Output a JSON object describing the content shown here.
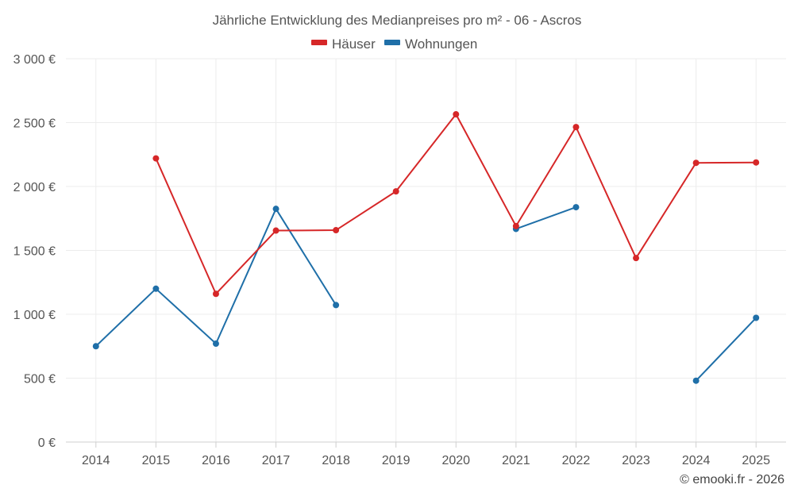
{
  "chart_data": {
    "type": "line",
    "title": "Jährliche Entwicklung des Medianpreises pro m² - 06 - Ascros",
    "xlabel": "",
    "ylabel": "",
    "categories": [
      "2014",
      "2015",
      "2016",
      "2017",
      "2018",
      "2019",
      "2020",
      "2021",
      "2022",
      "2023",
      "2024",
      "2025"
    ],
    "ylim": [
      0,
      3000
    ],
    "yticks": [
      0,
      500,
      1000,
      1500,
      2000,
      2500,
      3000
    ],
    "ytick_labels": [
      "0 €",
      "500 €",
      "1 000 €",
      "1 500 €",
      "2 000 €",
      "2 500 €",
      "3 000 €"
    ],
    "grid": true,
    "legend_position": "top-center",
    "series": [
      {
        "name": "Häuser",
        "color": "#d62728",
        "values": [
          null,
          2220,
          1160,
          1655,
          1658,
          1962,
          2565,
          1690,
          2465,
          1440,
          2185,
          2188
        ]
      },
      {
        "name": "Wohnungen",
        "color": "#1f6fa8",
        "values": [
          750,
          1200,
          770,
          1825,
          1072,
          null,
          null,
          1668,
          1838,
          null,
          480,
          972
        ]
      }
    ]
  },
  "credit": "© emooki.fr - 2026"
}
